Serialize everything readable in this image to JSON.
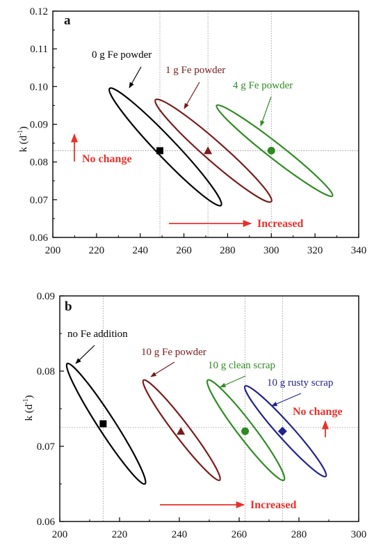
{
  "chart_data": [
    {
      "type": "scatter",
      "panel_label": "a",
      "ylabel": "k (d⁻¹)",
      "ylabel_main": "k (d",
      "ylabel_sup": "-1",
      "ylabel_close": ")",
      "xlabel": "",
      "xlim": [
        200,
        340
      ],
      "ylim": [
        0.06,
        0.12
      ],
      "x_ticks": [
        200,
        220,
        240,
        260,
        280,
        300,
        320,
        340
      ],
      "y_ticks": [
        0.06,
        0.07,
        0.08,
        0.09,
        0.1,
        0.11,
        0.12
      ],
      "x_tick_labels": [
        "200",
        "220",
        "240",
        "260",
        "280",
        "300",
        "320",
        "340"
      ],
      "y_tick_labels": [
        "0.06",
        "0.07",
        "0.08",
        "0.09",
        "0.10",
        "0.11",
        "0.12"
      ],
      "grid": false,
      "reference_lines": {
        "x": [
          249,
          271,
          300
        ],
        "y": [
          0.083
        ]
      },
      "series": [
        {
          "name": "0 g Fe powder",
          "color": "#000000",
          "marker": "square",
          "x": [
            249
          ],
          "y": [
            0.083
          ],
          "ellipse_endpoints": [
            [
              226,
              0.0995
            ],
            [
              277,
              0.0685
            ]
          ]
        },
        {
          "name": "1 g Fe powder",
          "color": "#7a1a1a",
          "marker": "triangle",
          "x": [
            271
          ],
          "y": [
            0.083
          ],
          "ellipse_endpoints": [
            [
              247,
              0.0965
            ],
            [
              300,
              0.0695
            ]
          ]
        },
        {
          "name": "4 g Fe powder",
          "color": "#2e8b22",
          "marker": "circle",
          "x": [
            300
          ],
          "y": [
            0.083
          ],
          "ellipse_endpoints": [
            [
              275,
              0.095
            ],
            [
              328,
              0.071
            ]
          ]
        }
      ],
      "annotations": [
        {
          "text": "No change",
          "color": "#e8312c",
          "arrow": "up"
        },
        {
          "text": "Increased",
          "color": "#e8312c",
          "arrow": "right"
        }
      ]
    },
    {
      "type": "scatter",
      "panel_label": "b",
      "ylabel": "k (d⁻¹)",
      "ylabel_main": "k (d",
      "ylabel_sup": "-1",
      "ylabel_close": ")",
      "xlabel": "",
      "xlim": [
        200,
        300
      ],
      "ylim": [
        0.06,
        0.09
      ],
      "x_ticks": [
        200,
        220,
        240,
        260,
        280,
        300
      ],
      "y_ticks": [
        0.06,
        0.07,
        0.08,
        0.09
      ],
      "x_tick_labels": [
        "200",
        "220",
        "240",
        "260",
        "280",
        "300"
      ],
      "y_tick_labels": [
        "0.06",
        "0.07",
        "0.08",
        "0.09"
      ],
      "grid": false,
      "reference_lines": {
        "x": [
          214.5,
          262,
          274.5
        ],
        "y": [
          0.0725
        ]
      },
      "series": [
        {
          "name": "no Fe addition",
          "color": "#000000",
          "marker": "square",
          "x": [
            214.5
          ],
          "y": [
            0.073
          ],
          "ellipse_endpoints": [
            [
              202.5,
              0.081
            ],
            [
              228.5,
              0.065
            ]
          ]
        },
        {
          "name": "10 g Fe powder",
          "color": "#7a1a1a",
          "marker": "triangle",
          "x": [
            240.5
          ],
          "y": [
            0.072
          ],
          "ellipse_endpoints": [
            [
              228,
              0.0788
            ],
            [
              253.5,
              0.0655
            ]
          ]
        },
        {
          "name": "10 g clean scrap",
          "color": "#2e8b22",
          "marker": "circle",
          "x": [
            262
          ],
          "y": [
            0.072
          ],
          "ellipse_endpoints": [
            [
              249.5,
              0.0788
            ],
            [
              275,
              0.0655
            ]
          ]
        },
        {
          "name": "10 g rusty scrap",
          "color": "#22228b",
          "marker": "diamond",
          "x": [
            274.5
          ],
          "y": [
            0.072
          ],
          "ellipse_endpoints": [
            [
              262,
              0.078
            ],
            [
              289,
              0.066
            ]
          ]
        }
      ],
      "annotations": [
        {
          "text": "No change",
          "color": "#e8312c",
          "arrow": "up"
        },
        {
          "text": "Increased",
          "color": "#e8312c",
          "arrow": "right"
        }
      ]
    }
  ]
}
